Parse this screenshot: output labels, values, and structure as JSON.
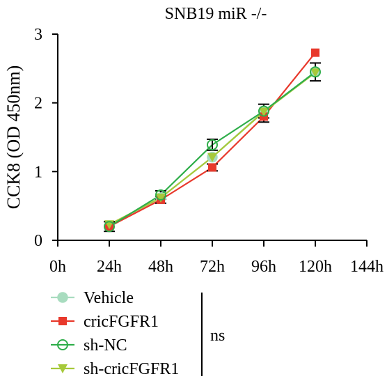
{
  "chart_data": {
    "type": "line",
    "title": "SNB19 miR -/-",
    "ylabel": "CCK8 (OD 450nm)",
    "xlabel": "",
    "categories": [
      "0h",
      "24h",
      "48h",
      "72h",
      "96h",
      "120h",
      "144h"
    ],
    "ylim": [
      0,
      3
    ],
    "yticks": [
      "0",
      "1",
      "2",
      "3"
    ],
    "grid": false,
    "legend_position": "bottom-left",
    "annotation": "ns",
    "series": [
      {
        "name": "Vehicle",
        "color": "#a8dcbf",
        "marker": "circle-filled",
        "x": [
          "24h",
          "48h",
          "72h",
          "96h",
          "120h"
        ],
        "values": [
          0.2,
          0.62,
          1.21,
          1.88,
          2.45
        ],
        "errors": [
          0,
          0,
          0,
          0,
          0
        ]
      },
      {
        "name": "cricFGFR1",
        "color": "#e8392c",
        "marker": "square",
        "x": [
          "24h",
          "48h",
          "72h",
          "96h",
          "120h"
        ],
        "values": [
          0.2,
          0.59,
          1.06,
          1.8,
          2.73
        ],
        "errors": [
          0,
          0.05,
          0.05,
          0.08,
          0
        ]
      },
      {
        "name": "sh-NC",
        "color": "#2fae4a",
        "marker": "circle-open",
        "x": [
          "24h",
          "48h",
          "72h",
          "96h",
          "120h"
        ],
        "values": [
          0.2,
          0.66,
          1.39,
          1.88,
          2.45
        ],
        "errors": [
          0.07,
          0.06,
          0.08,
          0.1,
          0.13
        ]
      },
      {
        "name": "sh-cricFGFR1",
        "color": "#a6c93a",
        "marker": "triangle-down",
        "x": [
          "24h",
          "48h",
          "72h",
          "96h",
          "120h"
        ],
        "values": [
          0.23,
          0.62,
          1.21,
          1.87,
          2.44
        ],
        "errors": [
          0,
          0,
          0,
          0,
          0
        ]
      }
    ]
  }
}
